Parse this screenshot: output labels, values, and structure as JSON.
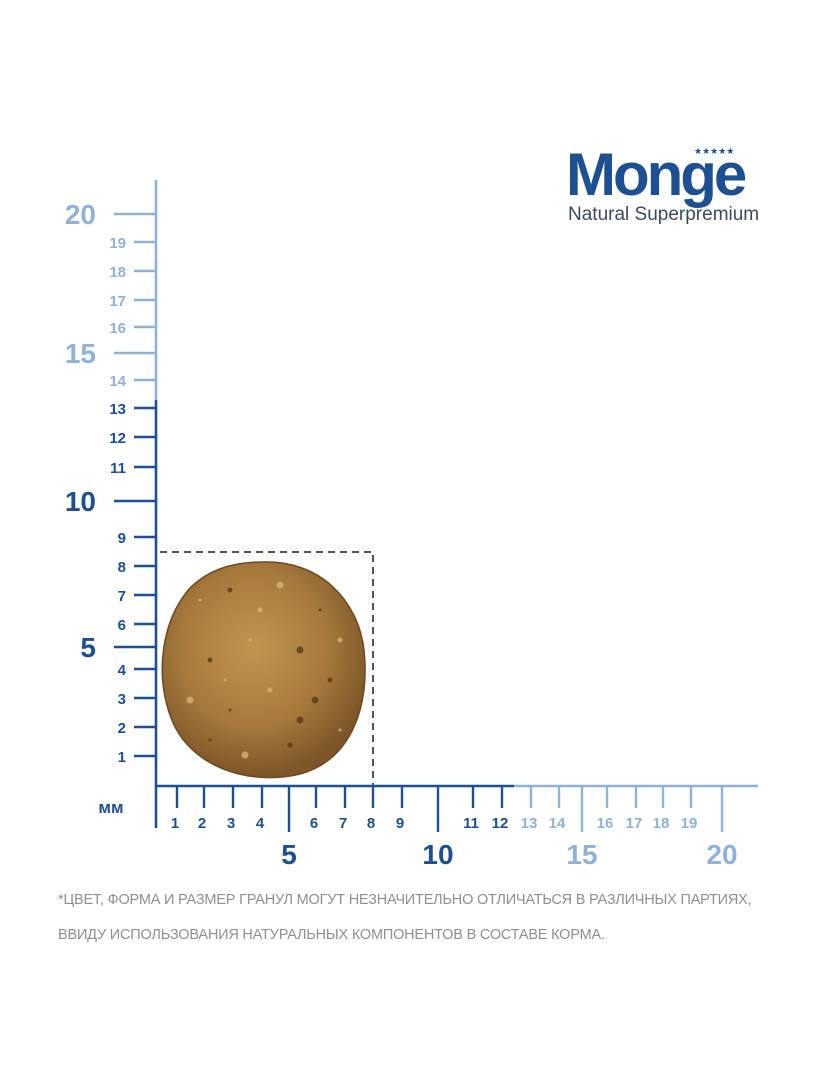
{
  "brand": {
    "logo_text": "Monge",
    "tagline": "Natural Superpremium",
    "stars": "★★★★★"
  },
  "colors": {
    "dark_blue": "#1d4f93",
    "light_blue": "#8fb2d6",
    "kibble": "#a67a3c",
    "outline": "#555555",
    "note_text": "#8f8f8f"
  },
  "ruler": {
    "unit_label": "мм",
    "dark_range_max": 12,
    "y_dark_range_max": 13,
    "range_max": 20,
    "labels": [
      "1",
      "2",
      "3",
      "4",
      "5",
      "6",
      "7",
      "8",
      "9",
      "10",
      "11",
      "12",
      "13",
      "14",
      "15",
      "16",
      "17",
      "18",
      "19",
      "20"
    ]
  },
  "kibble": {
    "name": "kibble-pellet",
    "width_mm": 7,
    "height_mm": 7,
    "outline_width_mm": 8,
    "outline_height_mm": 8.5
  },
  "disclaimer": {
    "line1": "*ЦВЕТ, ФОРМА И РАЗМЕР ГРАНУЛ МОГУТ НЕЗНАЧИТЕЛЬНО ОТЛИЧАТЬСЯ В РАЗЛИЧНЫХ ПАРТИЯХ,",
    "line2": "ВВИДУ ИСПОЛЬЗОВАНИЯ НАТУРАЛЬНЫХ КОМПОНЕНТОВ В СОСТАВЕ КОРМА."
  }
}
